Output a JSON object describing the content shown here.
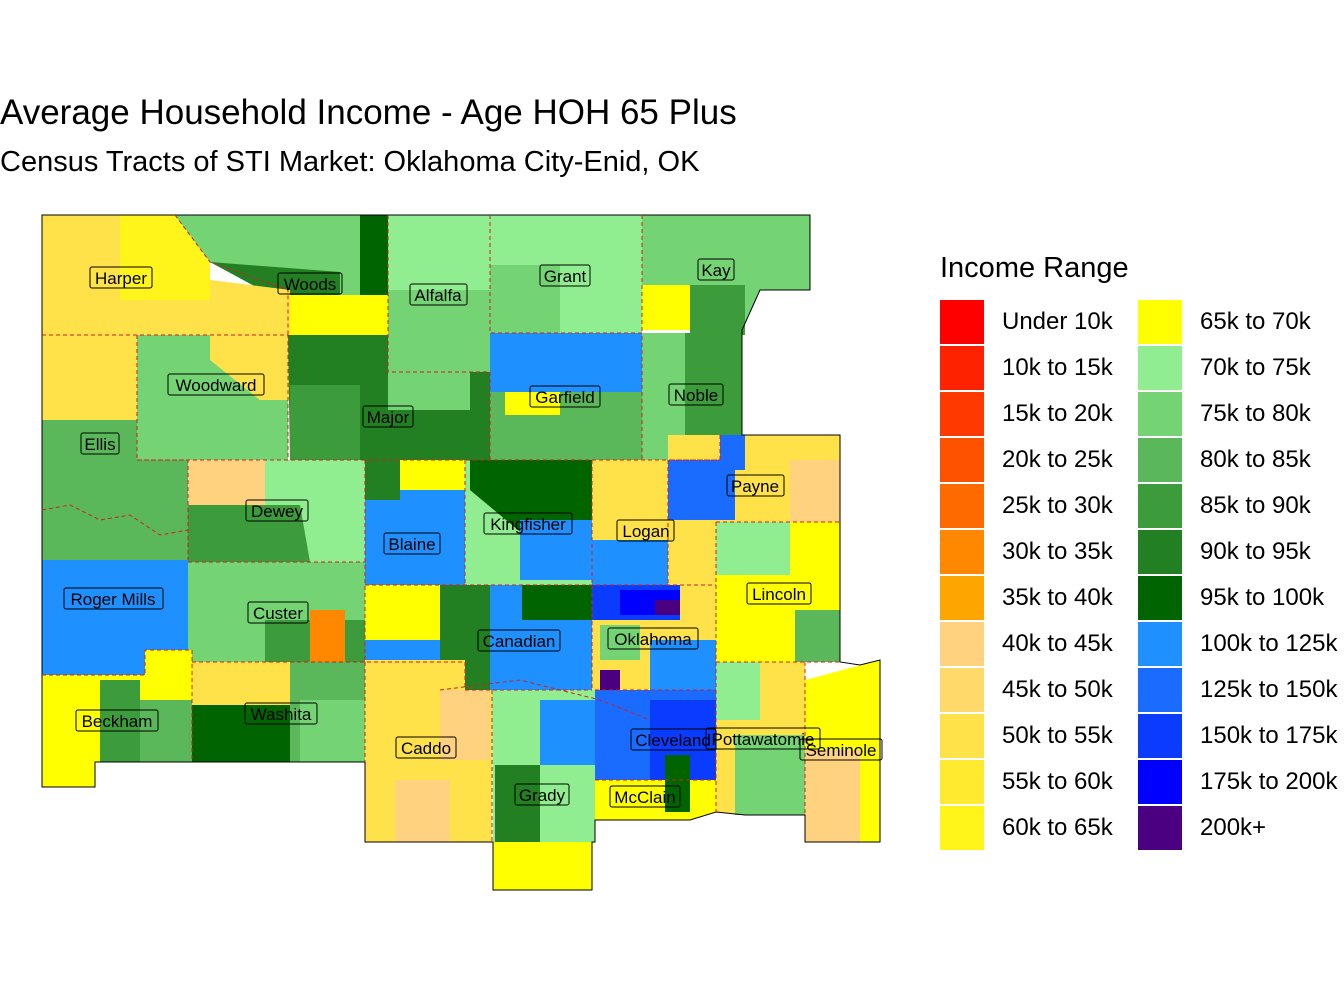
{
  "title": "Average Household Income - Age HOH 65 Plus",
  "subtitle": "Census Tracts of STI Market: Oklahoma City-Enid, OK",
  "legend": {
    "title": "Income Range",
    "items": [
      {
        "label": "Under 10k",
        "color": "#FF0000"
      },
      {
        "label": "10k to 15k",
        "color": "#FF2200"
      },
      {
        "label": "15k to 20k",
        "color": "#FF3A00"
      },
      {
        "label": "20k to 25k",
        "color": "#FF5200"
      },
      {
        "label": "25k to 30k",
        "color": "#FF6A00"
      },
      {
        "label": "30k to 35k",
        "color": "#FF8800"
      },
      {
        "label": "35k to 40k",
        "color": "#FFA500"
      },
      {
        "label": "40k to 45k",
        "color": "#FFD27F"
      },
      {
        "label": "45k to 50k",
        "color": "#FFDA6A"
      },
      {
        "label": "50k to 55k",
        "color": "#FFE24A"
      },
      {
        "label": "55k to 60k",
        "color": "#FFEA30"
      },
      {
        "label": "60k to 65k",
        "color": "#FFF51A"
      },
      {
        "label": "65k to 70k",
        "color": "#FFFF00"
      },
      {
        "label": "70k to 75k",
        "color": "#90EE90"
      },
      {
        "label": "75k to 80k",
        "color": "#74D474"
      },
      {
        "label": "80k to 85k",
        "color": "#5AB85A"
      },
      {
        "label": "85k to 90k",
        "color": "#3C9C3C"
      },
      {
        "label": "90k to 95k",
        "color": "#228022"
      },
      {
        "label": "95k to 100k",
        "color": "#006400"
      },
      {
        "label": "100k to 125k",
        "color": "#1E90FF"
      },
      {
        "label": "125k to 150k",
        "color": "#1A6BFF"
      },
      {
        "label": "150k to 175k",
        "color": "#0A3CFF"
      },
      {
        "label": "175k to 200k",
        "color": "#0000FF"
      },
      {
        "label": "200k+",
        "color": "#4B0082"
      }
    ]
  },
  "counties": [
    "Harper",
    "Woods",
    "Alfalfa",
    "Grant",
    "Kay",
    "Woodward",
    "Major",
    "Garfield",
    "Noble",
    "Ellis",
    "Payne",
    "Dewey",
    "Kingfisher",
    "Logan",
    "Blaine",
    "Roger Mills",
    "Custer",
    "Canadian",
    "Oklahoma",
    "Lincoln",
    "Beckham",
    "Washita",
    "Caddo",
    "Cleveland",
    "Pottawatomie",
    "Seminole",
    "Grady",
    "McClain"
  ]
}
